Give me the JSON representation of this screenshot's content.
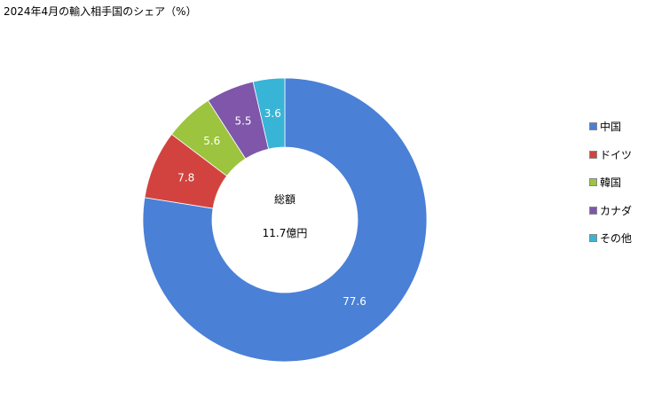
{
  "chart_data": {
    "type": "pie",
    "title": "2024年4月の輸入相手国のシェア（%）",
    "donut": true,
    "center_label": "総額",
    "center_value": "11.7億円",
    "categories": [
      "中国",
      "ドイツ",
      "韓国",
      "カナダ",
      "その他"
    ],
    "values": [
      77.6,
      7.8,
      5.6,
      5.5,
      3.6
    ],
    "colors": [
      "#4a80d6",
      "#d2433f",
      "#9cc43e",
      "#7f56aa",
      "#38b4d6"
    ],
    "legend_position": "right"
  }
}
